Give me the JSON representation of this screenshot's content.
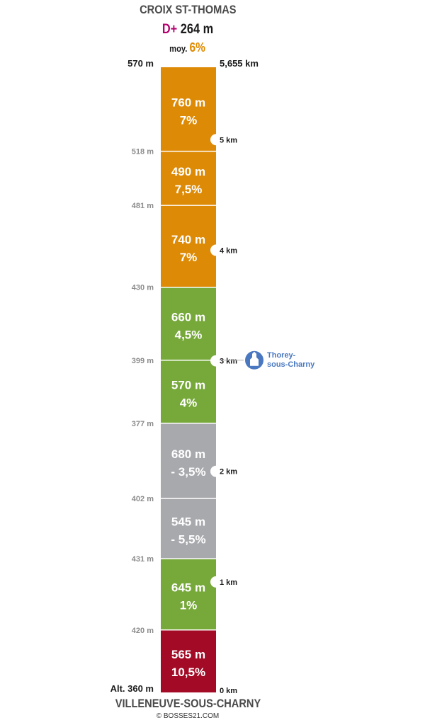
{
  "header": {
    "title": "CROIX ST-THOMAS",
    "gain_prefix": "D+",
    "gain_value": "264 m",
    "avg_prefix": "moy.",
    "avg_value": "6%"
  },
  "footer": {
    "start_name": "VILLENEUVE-SOUS-CHARNY",
    "copyright": "© BOSSES21.COM"
  },
  "chart_data": {
    "type": "bar",
    "total_distance_km": 5.655,
    "total_distance_label": "5,655 km",
    "start_altitude_label": "Alt. 360 m",
    "top_altitude_label": "570 m",
    "segments": [
      {
        "length_m": 565,
        "length_label": "565 m",
        "grade_label": "10,5%",
        "end_alt_label": "420 m",
        "color": "#a30a26"
      },
      {
        "length_m": 645,
        "length_label": "645 m",
        "grade_label": "1%",
        "end_alt_label": "431 m",
        "color": "#76a83a"
      },
      {
        "length_m": 545,
        "length_label": "545 m",
        "grade_label": "- 5,5%",
        "end_alt_label": "402 m",
        "color": "#a8a9ad"
      },
      {
        "length_m": 680,
        "length_label": "680 m",
        "grade_label": "- 3,5%",
        "end_alt_label": "377 m",
        "color": "#a8a9ad"
      },
      {
        "length_m": 570,
        "length_label": "570 m",
        "grade_label": "4%",
        "end_alt_label": "399 m",
        "color": "#76a83a"
      },
      {
        "length_m": 660,
        "length_label": "660 m",
        "grade_label": "4,5%",
        "end_alt_label": "430 m",
        "color": "#76a83a"
      },
      {
        "length_m": 740,
        "length_label": "740 m",
        "grade_label": "7%",
        "end_alt_label": "481 m",
        "color": "#dd8a06"
      },
      {
        "length_m": 490,
        "length_label": "490 m",
        "grade_label": "7,5%",
        "end_alt_label": "518 m",
        "color": "#dd8a06"
      },
      {
        "length_m": 760,
        "length_label": "760 m",
        "grade_label": "7%",
        "end_alt_label": null,
        "color": "#dd8a06"
      }
    ],
    "km_markers": [
      {
        "km": 0,
        "label": "0 km"
      },
      {
        "km": 1,
        "label": "1 km"
      },
      {
        "km": 2,
        "label": "2 km"
      },
      {
        "km": 3,
        "label": "3 km"
      },
      {
        "km": 4,
        "label": "4 km"
      },
      {
        "km": 5,
        "label": "5 km"
      }
    ],
    "pois": [
      {
        "km": 3.005,
        "label_lines": [
          "Thorey-",
          "sous-Charny"
        ],
        "icon": "church-icon",
        "color": "#4a78c0"
      }
    ]
  }
}
